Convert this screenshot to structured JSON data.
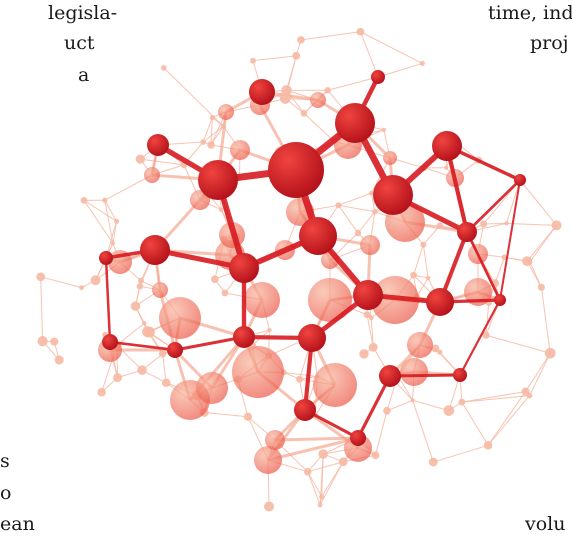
{
  "text_fragments": {
    "left": [
      "legisla-",
      "uct",
      "a",
      "s",
      "o",
      "ean"
    ],
    "right": [
      "time, ind",
      "proj",
      "volu"
    ]
  },
  "illustration": {
    "icon": "network-graph-illustration",
    "colors": {
      "core": "#d71920",
      "dark": "#b5121b",
      "mid": "#ec5b4a",
      "soft": "#f19a7e",
      "faint": "#f6b9a4"
    }
  }
}
